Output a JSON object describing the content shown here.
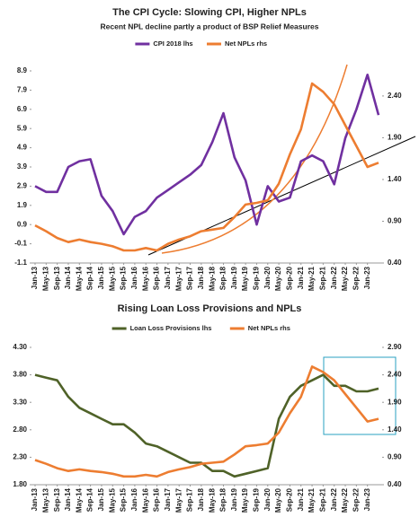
{
  "chart_data": [
    {
      "type": "line",
      "title": "The CPI Cycle: Slowing CPI, Higher NPLs",
      "subtitle": "Recent NPL decline partly a product of BSP Relief Measures",
      "categories": [
        "Jan-13",
        "May-13",
        "Sep-13",
        "Jan-14",
        "May-14",
        "Sep-14",
        "Jan-15",
        "May-15",
        "Sep-15",
        "Jan-16",
        "May-16",
        "Sep-16",
        "Jan-17",
        "May-17",
        "Sep-17",
        "Jan-18",
        "May-18",
        "Sep-18",
        "Jan-19",
        "May-19",
        "Sep-19",
        "Jan-20",
        "May-20",
        "Sep-20",
        "Jan-21",
        "May-21",
        "Sep-21",
        "Jan-22",
        "May-22",
        "Sep-22",
        "Jan-23",
        null
      ],
      "series": [
        {
          "name": "CPI 2018 lhs",
          "color": "#7030a0",
          "axis": "y",
          "values": [
            2.9,
            2.6,
            2.6,
            3.9,
            4.2,
            4.3,
            2.4,
            1.6,
            0.4,
            1.3,
            1.6,
            2.3,
            2.7,
            3.1,
            3.5,
            4.0,
            5.2,
            6.7,
            4.4,
            3.2,
            0.9,
            2.9,
            2.1,
            2.3,
            4.2,
            4.5,
            4.2,
            3.0,
            5.4,
            6.9,
            8.7,
            6.6
          ]
        },
        {
          "name": "Net NPLs rhs",
          "color": "#ed7d31",
          "axis": "y2",
          "values": [
            0.85,
            0.78,
            0.7,
            0.65,
            0.68,
            0.65,
            0.63,
            0.6,
            0.55,
            0.55,
            0.58,
            0.55,
            0.63,
            0.68,
            0.72,
            0.78,
            0.8,
            0.82,
            0.95,
            1.1,
            1.12,
            1.15,
            1.35,
            1.7,
            2.0,
            2.55,
            2.45,
            2.3,
            2.05,
            1.8,
            1.55,
            1.6
          ]
        }
      ],
      "ylim": [
        -1.1,
        8.9
      ],
      "yticks": [
        -1.1,
        -0.1,
        0.9,
        1.9,
        2.9,
        3.9,
        4.9,
        5.9,
        6.9,
        7.9,
        8.9
      ],
      "y2lim": [
        0.4,
        2.7
      ],
      "y2ticks": [
        {
          "value": 0.4,
          "label": "0.40"
        },
        {
          "value": 0.9,
          "label": "0.90"
        },
        {
          "value": 1.4,
          "label": "1.40"
        },
        {
          "value": 1.9,
          "label": "1.90"
        },
        {
          "value": 2.4,
          "label": "2.40"
        }
      ],
      "legend": "top"
    },
    {
      "type": "line",
      "title": "Rising Loan Loss Provisions and NPLs",
      "categories": [
        "Jan-13",
        "May-13",
        "Sep-13",
        "Jan-14",
        "May-14",
        "Sep-14",
        "Jan-15",
        "May-15",
        "Sep-15",
        "Jan-16",
        "May-16",
        "Sep-16",
        "Jan-17",
        "May-17",
        "Sep-17",
        "Jan-18",
        "May-18",
        "Sep-18",
        "Jan-19",
        "May-19",
        "Sep-19",
        "Jan-20",
        "May-20",
        "Sep-20",
        "Jan-21",
        "May-21",
        "Sep-21",
        "Jan-22",
        "May-22",
        "Sep-22",
        "Jan-23",
        null
      ],
      "series": [
        {
          "name": "Loan Loss Provisions lhs",
          "color": "#4f6228",
          "axis": "y",
          "values": [
            3.8,
            3.75,
            3.7,
            3.4,
            3.2,
            3.1,
            3.0,
            2.9,
            2.9,
            2.75,
            2.55,
            2.5,
            2.4,
            2.3,
            2.2,
            2.2,
            2.05,
            2.05,
            1.95,
            2.0,
            2.05,
            2.1,
            3.0,
            3.4,
            3.6,
            3.7,
            3.8,
            3.6,
            3.6,
            3.5,
            3.5,
            3.55
          ]
        },
        {
          "name": "Net NPLs rhs",
          "color": "#ed7d31",
          "axis": "y2",
          "values": [
            0.85,
            0.78,
            0.7,
            0.65,
            0.68,
            0.65,
            0.63,
            0.6,
            0.55,
            0.55,
            0.58,
            0.55,
            0.63,
            0.68,
            0.72,
            0.78,
            0.8,
            0.82,
            0.95,
            1.1,
            1.12,
            1.15,
            1.35,
            1.7,
            2.0,
            2.55,
            2.45,
            2.3,
            2.05,
            1.8,
            1.55,
            1.6
          ]
        }
      ],
      "ylim": [
        1.8,
        4.3
      ],
      "yticks": [
        {
          "value": 1.8,
          "label": "1.80"
        },
        {
          "value": 2.3,
          "label": "2.30"
        },
        {
          "value": 2.8,
          "label": "2.80"
        },
        {
          "value": 3.3,
          "label": "3.30"
        },
        {
          "value": 3.8,
          "label": "3.80"
        },
        {
          "value": 4.3,
          "label": "4.30"
        }
      ],
      "y2lim": [
        0.4,
        2.9
      ],
      "y2ticks": [
        {
          "value": 0.4,
          "label": "0.40"
        },
        {
          "value": 0.9,
          "label": "0.90"
        },
        {
          "value": 1.4,
          "label": "1.40"
        },
        {
          "value": 1.9,
          "label": "1.90"
        },
        {
          "value": 2.4,
          "label": "2.40"
        },
        {
          "value": 2.9,
          "label": "2.90"
        }
      ],
      "legend": "top"
    }
  ]
}
